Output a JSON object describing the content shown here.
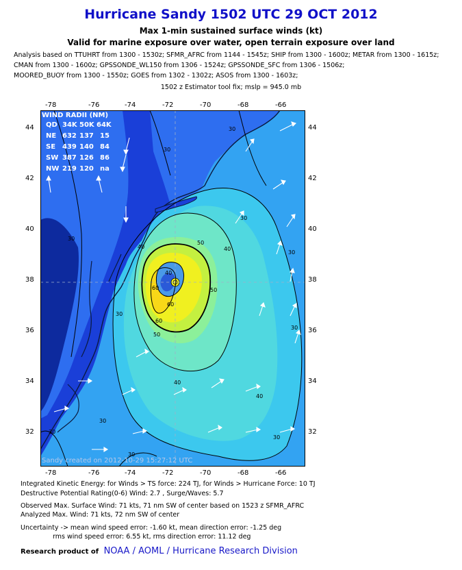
{
  "title": "Hurricane Sandy 1502 UTC 29 OCT 2012",
  "subtitle1": "Max 1-min sustained surface winds (kt)",
  "subtitle2": "Valid for marine exposure over water, open terrain exposure over land",
  "analysis_lines": [
    "Analysis based on TTUHRT from 1300 - 1530z; SFMR_AFRC from 1144 - 1545z; SHIP from 1300 - 1600z; METAR from 1300 - 1615z;",
    "CMAN from 1300 - 1600z; GPSSONDE_WL150 from 1306 - 1524z; GPSSONDE_SFC from 1306 - 1506z;",
    "MOORED_BUOY from 1300 - 1550z; GOES from 1302 - 1302z; ASOS from 1300 - 1603z;"
  ],
  "estimator": "1502 z Estimator tool fix; mslp = 945.0 mb",
  "map": {
    "x_ticks": [
      "-78",
      "-76",
      "-74",
      "-72",
      "-70",
      "-68",
      "-66"
    ],
    "y_ticks": [
      "44",
      "42",
      "40",
      "38",
      "36",
      "34",
      "32"
    ],
    "wind_radii": {
      "header": "WIND RADII (NM)",
      "columns": [
        "QD",
        "34K",
        "50K",
        "64K"
      ],
      "rows": [
        [
          "NE",
          "632",
          "137",
          "15"
        ],
        [
          "SE",
          "439",
          "140",
          "84"
        ],
        [
          "SW",
          "387",
          "126",
          "86"
        ],
        [
          "NW",
          "219",
          "120",
          "na"
        ]
      ]
    },
    "credit": "Sandy   created on 2012-10-29 15:27:12 UTC",
    "contour_labels": [
      "30",
      "30",
      "30",
      "30",
      "30",
      "30",
      "40",
      "40",
      "40",
      "40",
      "50",
      "50",
      "50",
      "60",
      "60",
      "60",
      "40",
      "30",
      "30",
      "30",
      "30",
      "30"
    ],
    "colors": {
      "lt20": "#1a3fd8",
      "c20": "#2e6ef0",
      "c25": "#33a3f2",
      "c30": "#3cc8ee",
      "c35": "#50d8e0",
      "c40": "#6ee6c8",
      "c45": "#8cf09a",
      "c50": "#c4f040",
      "c55": "#f0f020",
      "c60": "#f8d818",
      "land": "#0b2a70"
    }
  },
  "footer": {
    "ike": "Integrated Kinetic Energy: for Winds > TS force: 224 TJ, for Winds > Hurricane Force: 10 TJ",
    "dp": "Destructive Potential Rating(0-6)  Wind: 2.7 , Surge/Waves: 5.7",
    "observed": "Observed Max. Surface Wind: 71 kts, 71 nm SW of center based on 1523 z SFMR_AFRC",
    "analyzed": "Analyzed Max. Wind: 71 kts, 72 nm  SW of center",
    "uncert1": "Uncertainty -> mean wind speed error:  -1.60 kt, mean direction error:  -1.25 deg",
    "uncert2": "rms wind speed error: 6.55 kt, rms direction error: 11.12 deg",
    "research_label": "Research product of",
    "research_org": "NOAA  /  AOML  /  Hurricane Research Division"
  }
}
